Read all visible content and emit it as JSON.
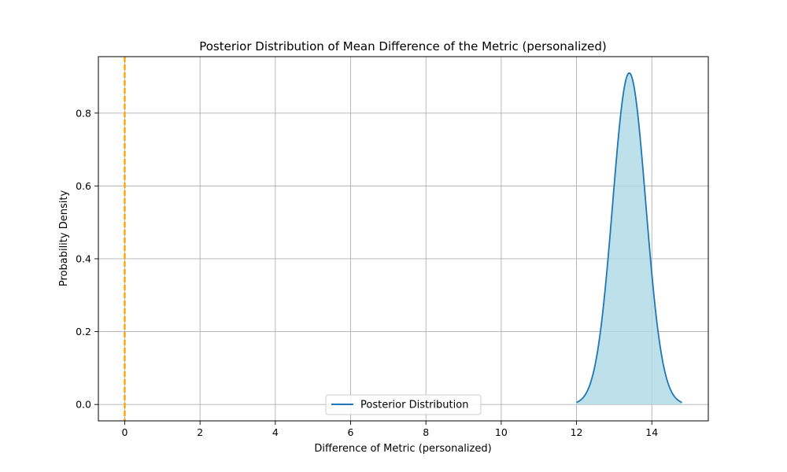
{
  "chart_data": {
    "type": "line",
    "title": "Posterior Distribution of Mean Difference of the Metric (personalized)",
    "xlabel": "Difference of Metric (personalized)",
    "ylabel": "Probability Density",
    "xlim": [
      -0.7,
      15.5
    ],
    "ylim": [
      -0.045,
      0.955
    ],
    "xticks": [
      0,
      2,
      4,
      6,
      8,
      10,
      12,
      14
    ],
    "yticks": [
      0.0,
      0.2,
      0.4,
      0.6,
      0.8
    ],
    "grid": true,
    "legend_position": "lower center",
    "series": [
      {
        "name": "Posterior Distribution",
        "kind": "normal-density",
        "mean": 13.4,
        "sd": 0.44,
        "x_range": [
          12.0,
          14.8
        ],
        "peak_density": 0.91,
        "color": "#1f77b4",
        "fill_color": "#add8e6"
      }
    ],
    "reference_lines": [
      {
        "axis": "x",
        "value": 0,
        "style": "dashed",
        "color": "#ffa500"
      }
    ]
  }
}
